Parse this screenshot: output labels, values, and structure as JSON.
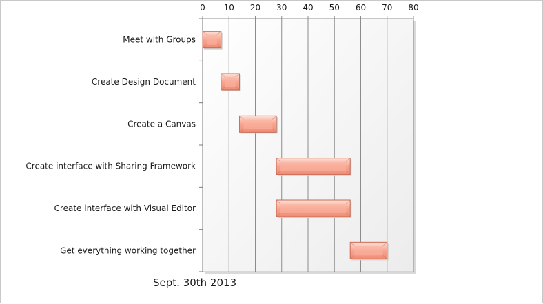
{
  "chart_data": {
    "type": "bar",
    "orientation": "horizontal",
    "stacked": "floating",
    "categories": [
      "Meet with Groups",
      "Create Design Document",
      "Create a Canvas",
      "Create interface with Sharing Framework",
      "Create interface with Visual Editor",
      "Get everything working together"
    ],
    "series": [
      {
        "start": [
          0,
          7,
          14,
          28,
          28,
          56
        ],
        "end": [
          7,
          14,
          28,
          56,
          56,
          70
        ]
      }
    ],
    "xlim": [
      0,
      80
    ],
    "x_ticks": [
      0,
      10,
      20,
      30,
      40,
      50,
      60,
      70,
      80
    ],
    "x_axis_position": "top",
    "grid": true,
    "legend": "none",
    "bar_color": "#f7a590",
    "bar_edge_color": "#c96a55",
    "gridline_color": "#8c8c8c",
    "title": "",
    "xlabel": "",
    "ylabel": ""
  },
  "caption": "Sept. 30th 2013"
}
